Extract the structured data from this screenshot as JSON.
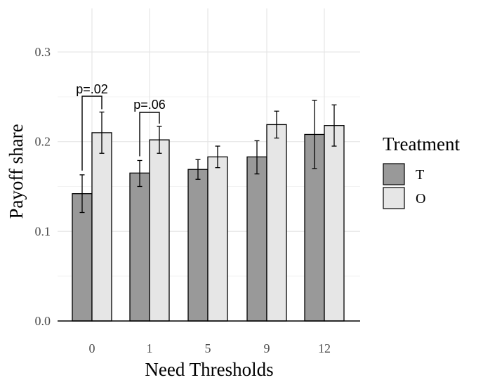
{
  "chart_data": {
    "type": "bar",
    "xlabel": "Need Thresholds",
    "ylabel": "Payoff share",
    "categories": [
      "0",
      "1",
      "5",
      "9",
      "12"
    ],
    "ylim": [
      0,
      0.3
    ],
    "yticks": [
      "0.0",
      "0.1",
      "0.2",
      "0.3"
    ],
    "grid": true,
    "legend": {
      "title": "Treatment",
      "position": "right"
    },
    "series": [
      {
        "name": "T",
        "color": "#999999",
        "values": [
          0.142,
          0.165,
          0.169,
          0.183,
          0.208
        ],
        "err_low": [
          0.121,
          0.15,
          0.158,
          0.164,
          0.17
        ],
        "err_high": [
          0.163,
          0.179,
          0.18,
          0.201,
          0.246
        ]
      },
      {
        "name": "O",
        "color": "#e6e6e6",
        "values": [
          0.21,
          0.202,
          0.183,
          0.219,
          0.218
        ],
        "err_low": [
          0.187,
          0.187,
          0.171,
          0.204,
          0.195
        ],
        "err_high": [
          0.233,
          0.217,
          0.195,
          0.234,
          0.241
        ]
      }
    ],
    "annotations": [
      {
        "category": "0",
        "text": "p=.02"
      },
      {
        "category": "1",
        "text": "p=.06"
      }
    ]
  }
}
